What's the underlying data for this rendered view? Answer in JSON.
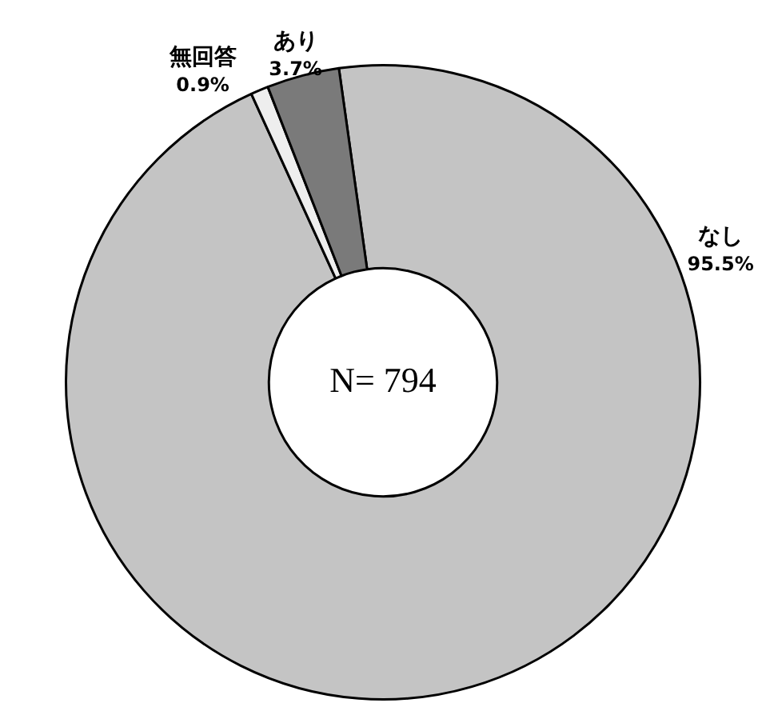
{
  "chart_data": {
    "type": "donut",
    "categories": [
      "なし",
      "無回答",
      "あり"
    ],
    "values": [
      95.5,
      0.9,
      3.7
    ],
    "colors": [
      "#c4c4c4",
      "#eeeeee",
      "#7a7a7a"
    ],
    "value_labels": [
      "95.5%",
      "0.9%",
      "3.7%"
    ],
    "annotations": [
      "N= 794"
    ],
    "legend": false
  }
}
